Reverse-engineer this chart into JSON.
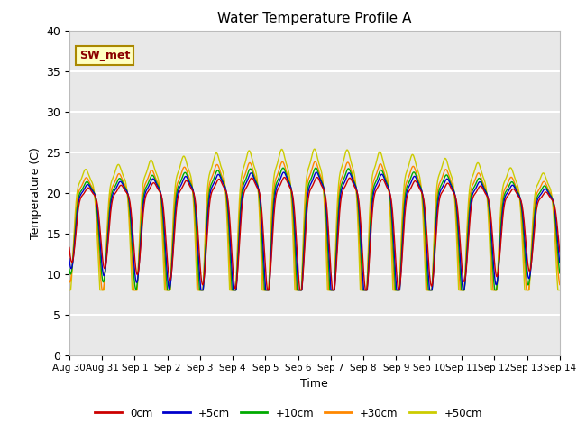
{
  "title": "Water Temperature Profile A",
  "xlabel": "Time",
  "ylabel": "Temperature (C)",
  "ylim": [
    0,
    40
  ],
  "yticks": [
    0,
    5,
    10,
    15,
    20,
    25,
    30,
    35,
    40
  ],
  "x_labels": [
    "Aug 30",
    "Aug 31",
    "Sep 1",
    "Sep 2",
    "Sep 3",
    "Sep 4",
    "Sep 5",
    "Sep 6",
    "Sep 7",
    "Sep 8",
    "Sep 9",
    "Sep 10",
    "Sep 11",
    "Sep 12",
    "Sep 13",
    "Sep 14"
  ],
  "annotation_text": "SW_met",
  "annotation_color": "#8B0000",
  "annotation_bg": "#FFFFC0",
  "legend_labels": [
    "0cm",
    "+5cm",
    "+10cm",
    "+30cm",
    "+50cm"
  ],
  "line_colors": {
    "0cm": "#CC0000",
    "+5cm": "#0000CC",
    "+10cm": "#00AA00",
    "+30cm": "#FF8800",
    "+50cm": "#CCCC00"
  },
  "plot_bg_color": "#E8E8E8",
  "grid_color": "#FFFFFF",
  "title_fontsize": 11,
  "n_days": 15,
  "base_temp": 17.5,
  "figsize": [
    6.4,
    4.8
  ],
  "dpi": 100
}
